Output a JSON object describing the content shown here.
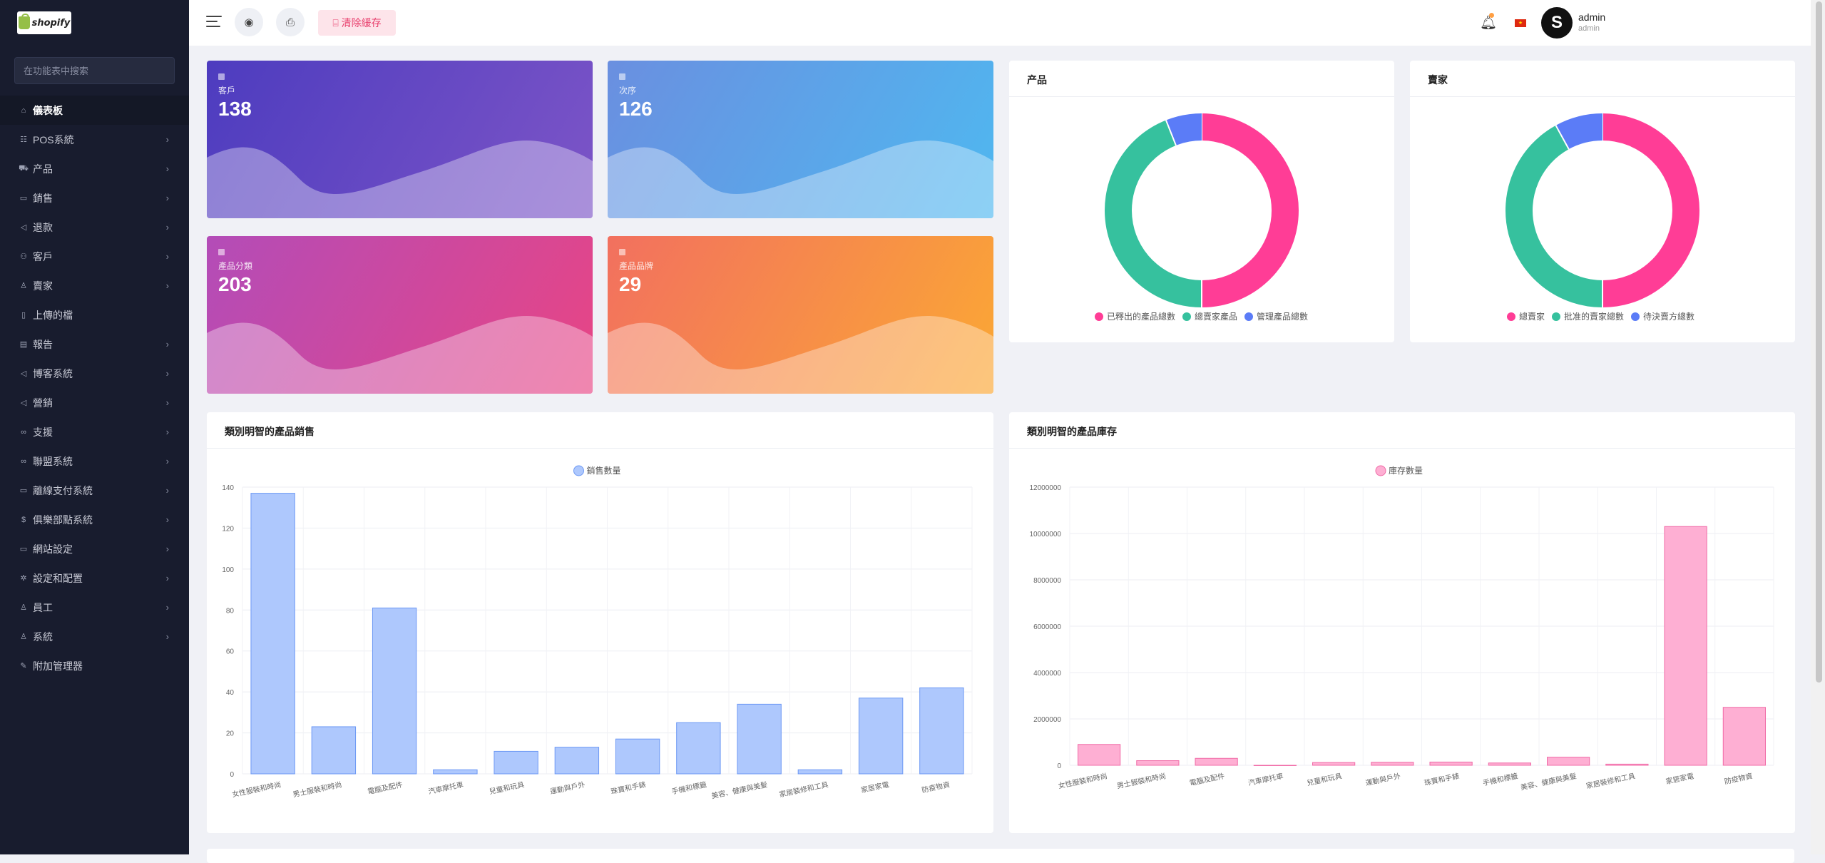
{
  "sidebar": {
    "logo_text": "shopify",
    "search_placeholder": "在功能表中搜索",
    "items": [
      {
        "label": "儀表板",
        "icon": "home-icon",
        "glyph": "⌂",
        "active": true,
        "chevron": false
      },
      {
        "label": "POS系統",
        "icon": "list-icon",
        "glyph": "☷",
        "chevron": true
      },
      {
        "label": "产品",
        "icon": "cart-icon",
        "glyph": "⛟",
        "chevron": true
      },
      {
        "label": "銷售",
        "icon": "money-icon",
        "glyph": "▭",
        "chevron": true
      },
      {
        "label": "退款",
        "icon": "refund-icon",
        "glyph": "◁",
        "chevron": true
      },
      {
        "label": "客戶",
        "icon": "users-icon",
        "glyph": "⚇",
        "chevron": true
      },
      {
        "label": "賣家",
        "icon": "user-icon",
        "glyph": "♙",
        "chevron": true
      },
      {
        "label": "上傳的檔",
        "icon": "file-icon",
        "glyph": "▯",
        "chevron": false
      },
      {
        "label": "報告",
        "icon": "report-icon",
        "glyph": "▤",
        "chevron": true
      },
      {
        "label": "博客系統",
        "icon": "megaphone-icon",
        "glyph": "◁",
        "chevron": true
      },
      {
        "label": "營銷",
        "icon": "bullhorn-icon",
        "glyph": "◁",
        "chevron": true
      },
      {
        "label": "支援",
        "icon": "link-icon",
        "glyph": "∞",
        "chevron": true
      },
      {
        "label": "聯盟系統",
        "icon": "chain-icon",
        "glyph": "∞",
        "chevron": true
      },
      {
        "label": "離線支付系統",
        "icon": "wallet-icon",
        "glyph": "▭",
        "chevron": true
      },
      {
        "label": "俱樂部點系統",
        "icon": "coin-icon",
        "glyph": "$",
        "chevron": true
      },
      {
        "label": "網站設定",
        "icon": "monitor-icon",
        "glyph": "▭",
        "chevron": true
      },
      {
        "label": "設定和配置",
        "icon": "settings-icon",
        "glyph": "✲",
        "chevron": true
      },
      {
        "label": "員工",
        "icon": "staff-icon",
        "glyph": "♙",
        "chevron": true
      },
      {
        "label": "系統",
        "icon": "system-icon",
        "glyph": "♙",
        "chevron": true
      },
      {
        "label": "附加管理器",
        "icon": "wrench-icon",
        "glyph": "✎",
        "chevron": false
      }
    ]
  },
  "topbar": {
    "clear_cache_label": "清除緩存",
    "user_name": "admin",
    "user_role": "admin",
    "avatar_letter": "S",
    "flag_glyph": "★"
  },
  "stats": [
    {
      "label": "客戶",
      "value": "138"
    },
    {
      "label": "次序",
      "value": "126"
    },
    {
      "label": "產品分類",
      "value": "203"
    },
    {
      "label": "產品品牌",
      "value": "29"
    }
  ],
  "donuts": [
    {
      "title": "产品",
      "colors": [
        "#ff3d96",
        "#36c19e",
        "#5b7cf7"
      ],
      "legend": [
        "已釋出的產品總數",
        "總賣家產品",
        "管理產品總數"
      ],
      "values": [
        50,
        44,
        6
      ]
    },
    {
      "title": "賣家",
      "colors": [
        "#ff3d96",
        "#36c19e",
        "#5b7cf7"
      ],
      "legend": [
        "總賣家",
        "批准的賣家總數",
        "待決賣方總數"
      ],
      "values": [
        50,
        42,
        8
      ]
    }
  ],
  "chart_data": [
    {
      "type": "bar",
      "title": "類別明智的產品銷售",
      "categories": [
        "女性服裝和時尚",
        "男士服裝和時尚",
        "電腦及配件",
        "汽車摩托車",
        "兒童和玩具",
        "運動與戶外",
        "珠寶和手錶",
        "手機和標籤",
        "美容、健康與美髮",
        "家居裝修和工具",
        "家居家電",
        "防疫物資"
      ],
      "series": [
        {
          "name": "銷售數量",
          "values": [
            137,
            23,
            81,
            2,
            11,
            13,
            17,
            25,
            34,
            2,
            37,
            42
          ]
        }
      ],
      "ylim": [
        0,
        140
      ],
      "yticks": [
        "0",
        "20",
        "40",
        "60",
        "80",
        "100",
        "120",
        "140"
      ],
      "grid": true,
      "legend": "top-center",
      "colors": {
        "fill": "#aec8fd",
        "stroke": "#6c98f4"
      }
    },
    {
      "type": "bar",
      "title": "類別明智的產品庫存",
      "categories": [
        "女性服裝和時尚",
        "男士服裝和時尚",
        "電腦及配件",
        "汽車摩托車",
        "兒童和玩具",
        "運動與戶外",
        "珠寶和手錶",
        "手機和標籤",
        "美容、健康與美髮",
        "家居裝修和工具",
        "家居家電",
        "防疫物資"
      ],
      "series": [
        {
          "name": "庫存數量",
          "values": [
            900000,
            200000,
            300000,
            0,
            120000,
            130000,
            140000,
            100000,
            350000,
            50000,
            10300000,
            2500000
          ]
        }
      ],
      "ylim": [
        0,
        12000000
      ],
      "yticks": [
        "0",
        "2000000",
        "4000000",
        "6000000",
        "8000000",
        "10000000",
        "12000000"
      ],
      "grid": true,
      "legend": "top-center",
      "colors": {
        "fill": "#feafd3",
        "stroke": "#f06ba7"
      }
    }
  ]
}
